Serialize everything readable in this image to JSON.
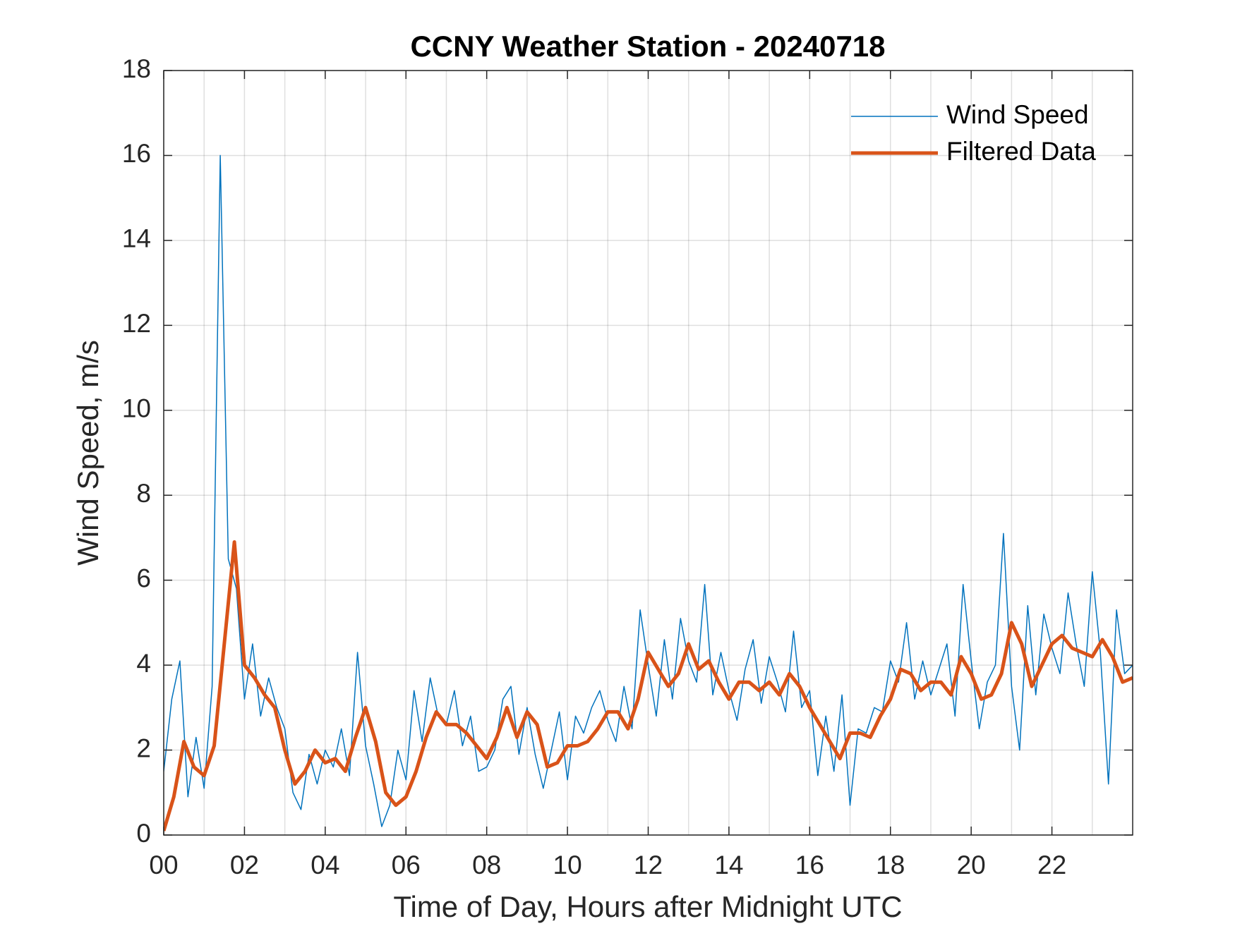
{
  "chart_data": {
    "type": "line",
    "title": "CCNY Weather Station - 20240718",
    "xlabel": "Time of Day, Hours after Midnight UTC",
    "ylabel": "Wind Speed, m/s",
    "xlim": [
      0,
      24
    ],
    "ylim": [
      0,
      18
    ],
    "xticks": [
      {
        "value": 0,
        "label": "00"
      },
      {
        "value": 2,
        "label": "02"
      },
      {
        "value": 4,
        "label": "04"
      },
      {
        "value": 6,
        "label": "06"
      },
      {
        "value": 8,
        "label": "08"
      },
      {
        "value": 10,
        "label": "10"
      },
      {
        "value": 12,
        "label": "12"
      },
      {
        "value": 14,
        "label": "14"
      },
      {
        "value": 16,
        "label": "16"
      },
      {
        "value": 18,
        "label": "18"
      },
      {
        "value": 20,
        "label": "20"
      },
      {
        "value": 22,
        "label": "22"
      }
    ],
    "xminorticks": [
      1,
      3,
      5,
      7,
      9,
      11,
      13,
      15,
      17,
      19,
      21,
      23
    ],
    "yticks": [
      0,
      2,
      4,
      6,
      8,
      10,
      12,
      14,
      16,
      18
    ],
    "grid": true,
    "legend": "upper right",
    "series": [
      {
        "name": "Wind Speed",
        "color": "#0072bd",
        "width": 1.5,
        "x": [
          0,
          0.2,
          0.4,
          0.6,
          0.8,
          1,
          1.2,
          1.4,
          1.6,
          1.8,
          2,
          2.2,
          2.4,
          2.6,
          2.8,
          3,
          3.2,
          3.4,
          3.6,
          3.8,
          4,
          4.2,
          4.4,
          4.6,
          4.8,
          5,
          5.2,
          5.4,
          5.6,
          5.8,
          6,
          6.2,
          6.4,
          6.6,
          6.8,
          7,
          7.2,
          7.4,
          7.6,
          7.8,
          8,
          8.2,
          8.4,
          8.6,
          8.8,
          9,
          9.2,
          9.4,
          9.6,
          9.8,
          10,
          10.2,
          10.4,
          10.6,
          10.8,
          11,
          11.2,
          11.4,
          11.6,
          11.8,
          12,
          12.2,
          12.4,
          12.6,
          12.8,
          13,
          13.2,
          13.4,
          13.6,
          13.8,
          14,
          14.2,
          14.4,
          14.6,
          14.8,
          15,
          15.2,
          15.4,
          15.6,
          15.8,
          16,
          16.2,
          16.4,
          16.6,
          16.8,
          17,
          17.2,
          17.4,
          17.6,
          17.8,
          18,
          18.2,
          18.4,
          18.6,
          18.8,
          19,
          19.2,
          19.4,
          19.6,
          19.8,
          20,
          20.2,
          20.4,
          20.6,
          20.8,
          21,
          21.2,
          21.4,
          21.6,
          21.8,
          22,
          22.2,
          22.4,
          22.6,
          22.8,
          23,
          23.2,
          23.4,
          23.6,
          23.8,
          24
        ],
        "values": [
          1.5,
          3.2,
          4.1,
          0.9,
          2.3,
          1.1,
          3.5,
          16.0,
          6.5,
          5.8,
          3.2,
          4.5,
          2.8,
          3.7,
          3.0,
          2.5,
          1.0,
          0.6,
          1.9,
          1.2,
          2.0,
          1.6,
          2.5,
          1.4,
          4.3,
          2.1,
          1.2,
          0.2,
          0.7,
          2.0,
          1.3,
          3.4,
          2.2,
          3.7,
          2.8,
          2.6,
          3.4,
          2.1,
          2.8,
          1.5,
          1.6,
          2.0,
          3.2,
          3.5,
          1.9,
          3.0,
          1.9,
          1.1,
          2.0,
          2.9,
          1.3,
          2.8,
          2.4,
          3.0,
          3.4,
          2.7,
          2.2,
          3.5,
          2.5,
          5.3,
          4.0,
          2.8,
          4.6,
          3.2,
          5.1,
          4.1,
          3.6,
          5.9,
          3.3,
          4.3,
          3.4,
          2.7,
          3.9,
          4.6,
          3.1,
          4.2,
          3.6,
          2.9,
          4.8,
          3.0,
          3.4,
          1.4,
          2.8,
          1.5,
          3.3,
          0.7,
          2.5,
          2.4,
          3.0,
          2.9,
          4.1,
          3.6,
          5.0,
          3.2,
          4.1,
          3.3,
          3.9,
          4.5,
          2.8,
          5.9,
          4.1,
          2.5,
          3.6,
          4.0,
          7.1,
          3.5,
          2.0,
          5.4,
          3.3,
          5.2,
          4.4,
          3.8,
          5.7,
          4.5,
          3.5,
          6.2,
          4.3,
          1.2,
          5.3,
          3.8,
          4.0
        ]
      },
      {
        "name": "Filtered Data",
        "color": "#d95319",
        "width": 5,
        "x": [
          0,
          0.25,
          0.5,
          0.75,
          1,
          1.25,
          1.5,
          1.75,
          2,
          2.25,
          2.5,
          2.75,
          3,
          3.25,
          3.5,
          3.75,
          4,
          4.25,
          4.5,
          4.75,
          5,
          5.25,
          5.5,
          5.75,
          6,
          6.25,
          6.5,
          6.75,
          7,
          7.25,
          7.5,
          7.75,
          8,
          8.25,
          8.5,
          8.75,
          9,
          9.25,
          9.5,
          9.75,
          10,
          10.25,
          10.5,
          10.75,
          11,
          11.25,
          11.5,
          11.75,
          12,
          12.25,
          12.5,
          12.75,
          13,
          13.25,
          13.5,
          13.75,
          14,
          14.25,
          14.5,
          14.75,
          15,
          15.25,
          15.5,
          15.75,
          16,
          16.25,
          16.5,
          16.75,
          17,
          17.25,
          17.5,
          17.75,
          18,
          18.25,
          18.5,
          18.75,
          19,
          19.25,
          19.5,
          19.75,
          20,
          20.25,
          20.5,
          20.75,
          21,
          21.25,
          21.5,
          21.75,
          22,
          22.25,
          22.5,
          22.75,
          23,
          23.25,
          23.5,
          23.75,
          24
        ],
        "values": [
          0.1,
          0.9,
          2.2,
          1.6,
          1.4,
          2.1,
          4.5,
          6.9,
          4.0,
          3.7,
          3.3,
          3.0,
          2.0,
          1.2,
          1.5,
          2.0,
          1.7,
          1.8,
          1.5,
          2.3,
          3.0,
          2.2,
          1.0,
          0.7,
          0.9,
          1.5,
          2.3,
          2.9,
          2.6,
          2.6,
          2.4,
          2.1,
          1.8,
          2.3,
          3.0,
          2.3,
          2.9,
          2.6,
          1.6,
          1.7,
          2.1,
          2.1,
          2.2,
          2.5,
          2.9,
          2.9,
          2.5,
          3.2,
          4.3,
          3.9,
          3.5,
          3.8,
          4.5,
          3.9,
          4.1,
          3.6,
          3.2,
          3.6,
          3.6,
          3.4,
          3.6,
          3.3,
          3.8,
          3.5,
          3.0,
          2.6,
          2.2,
          1.8,
          2.4,
          2.4,
          2.3,
          2.8,
          3.2,
          3.9,
          3.8,
          3.4,
          3.6,
          3.6,
          3.3,
          4.2,
          3.8,
          3.2,
          3.3,
          3.8,
          5.0,
          4.5,
          3.5,
          4.0,
          4.5,
          4.7,
          4.4,
          4.3,
          4.2,
          4.6,
          4.2,
          3.6,
          3.7
        ]
      }
    ]
  }
}
